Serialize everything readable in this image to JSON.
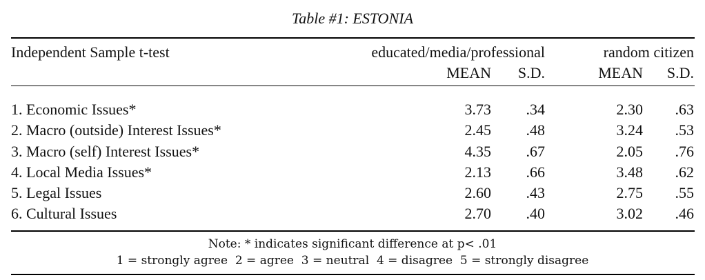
{
  "caption": "Table #1: ESTONIA",
  "header": {
    "left": "Independent Sample t-test",
    "group1": "educated/media/professional",
    "group2": "random citizen",
    "mean": "MEAN",
    "sd": "S.D."
  },
  "rows": [
    {
      "label": "1. Economic Issues*",
      "g1_mean": "3.73",
      "g1_sd": ".34",
      "g2_mean": "2.30",
      "g2_sd": ".63"
    },
    {
      "label": "2. Macro (outside) Interest Issues*",
      "g1_mean": "2.45",
      "g1_sd": ".48",
      "g2_mean": "3.24",
      "g2_sd": ".53"
    },
    {
      "label": "3. Macro (self) Interest Issues*",
      "g1_mean": "4.35",
      "g1_sd": ".67",
      "g2_mean": "2.05",
      "g2_sd": ".76"
    },
    {
      "label": "4. Local Media Issues*",
      "g1_mean": "2.13",
      "g1_sd": ".66",
      "g2_mean": "3.48",
      "g2_sd": ".62"
    },
    {
      "label": "5. Legal Issues",
      "g1_mean": "2.60",
      "g1_sd": ".43",
      "g2_mean": "2.75",
      "g2_sd": ".55"
    },
    {
      "label": "6. Cultural Issues",
      "g1_mean": "2.70",
      "g1_sd": ".40",
      "g2_mean": "3.02",
      "g2_sd": ".46"
    }
  ],
  "notes": {
    "line1": "Note: * indicates significant difference at p< .01",
    "line2": "1 = strongly agree  2 = agree  3 = neutral  4 = disagree  5 = strongly disagree"
  }
}
